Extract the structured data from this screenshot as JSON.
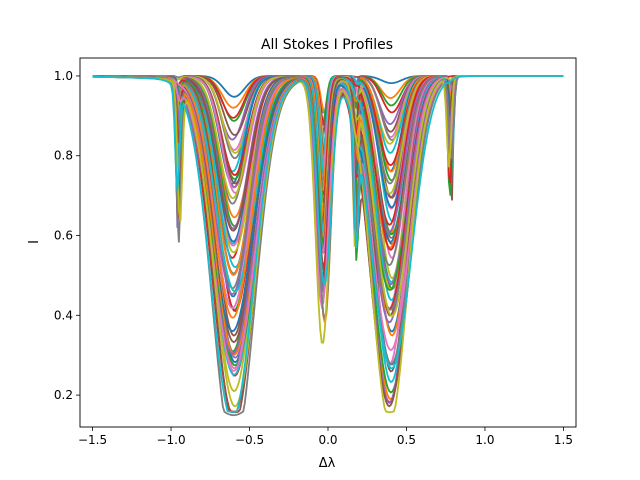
{
  "chart_data": {
    "type": "line",
    "title": "All Stokes I Profiles",
    "xlabel": "Δλ",
    "ylabel": "I",
    "xlim": [
      -1.58,
      1.58
    ],
    "ylim": [
      0.12,
      1.045
    ],
    "x_ticks": [
      -1.5,
      -1.0,
      -0.5,
      0.0,
      0.5,
      1.0,
      1.5
    ],
    "x_tick_labels": [
      "−1.5",
      "−1.0",
      "−0.5",
      "0.0",
      "0.5",
      "1.0",
      "1.5"
    ],
    "y_ticks": [
      0.2,
      0.4,
      0.6,
      0.8,
      1.0
    ],
    "y_tick_labels": [
      "0.2",
      "0.4",
      "0.6",
      "0.8",
      "1.0"
    ],
    "grid": false,
    "legend": "none",
    "x_range": [
      -1.5,
      1.5
    ],
    "continuum_level": 1.0,
    "line_centers": [
      {
        "center": -0.6,
        "depth_range": [
          0.05,
          0.84
        ],
        "width_range": [
          0.05,
          0.2
        ]
      },
      {
        "center": -0.03,
        "depth_range": [
          0.08,
          0.6
        ],
        "width_range": [
          0.02,
          0.06
        ]
      },
      {
        "center": 0.4,
        "depth_range": [
          0.02,
          0.8
        ],
        "width_range": [
          0.05,
          0.17
        ]
      },
      {
        "center": -0.95,
        "depth_range": [
          0.0,
          0.38
        ],
        "width_range": [
          0.01,
          0.02
        ]
      },
      {
        "center": 0.78,
        "depth_range": [
          0.0,
          0.3
        ],
        "width_range": [
          0.01,
          0.02
        ]
      },
      {
        "center": 0.18,
        "depth_range": [
          0.0,
          0.4
        ],
        "width_range": [
          0.01,
          0.02
        ]
      }
    ],
    "profile_count": 60,
    "minimum_observed": 0.16,
    "series_colors": [
      "#1f77b4",
      "#ff7f0e",
      "#2ca02c",
      "#d62728",
      "#9467bd",
      "#8c564b",
      "#e377c2",
      "#7f7f7f",
      "#bcbd22",
      "#17becf"
    ]
  }
}
